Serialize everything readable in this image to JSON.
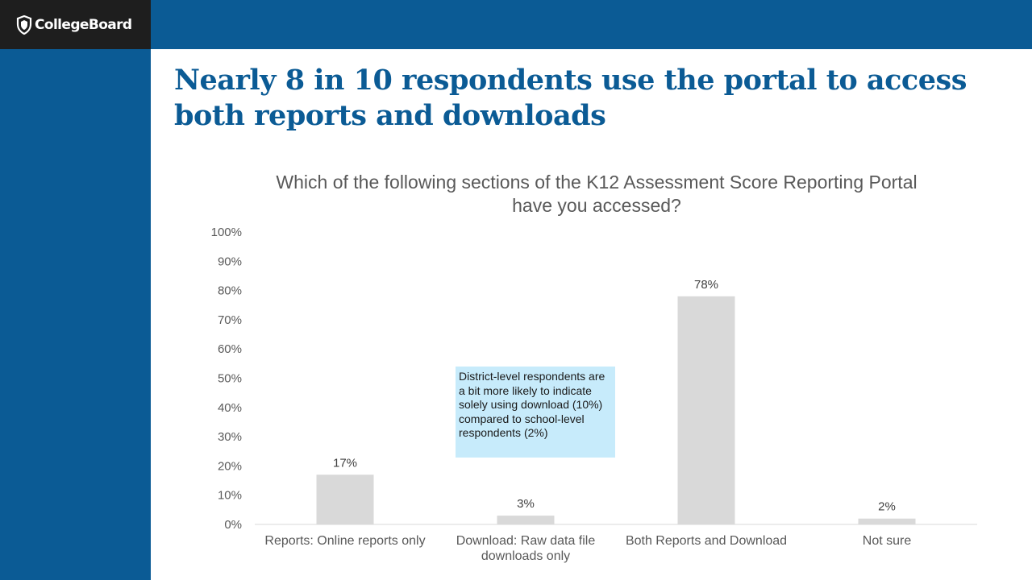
{
  "brand": {
    "name": "CollegeBoard",
    "color_primary": "#0b5b95",
    "color_logo_bg": "#1e1e1e"
  },
  "slide": {
    "title": "Nearly 8 in 10 respondents use the portal to access both reports and downloads"
  },
  "callout": {
    "text": "District-level respondents are a bit more likely to indicate solely using download (10%) compared to school-level respondents (2%)",
    "color": "#c7ebfb"
  },
  "chart_data": {
    "type": "bar",
    "title": "Which of the following sections of the K12 Assessment Score Reporting Portal have you accessed?",
    "categories": [
      "Reports: Online reports only",
      "Download: Raw data file downloads only",
      "Both Reports and Download",
      "Not sure"
    ],
    "category_lines": [
      [
        "Reports: Online reports only"
      ],
      [
        "Download: Raw data file",
        "downloads only"
      ],
      [
        "Both Reports and Download"
      ],
      [
        "Not sure"
      ]
    ],
    "values": [
      17,
      3,
      78,
      2
    ],
    "data_labels": [
      "17%",
      "3%",
      "78%",
      "2%"
    ],
    "ylim": [
      0,
      100
    ],
    "yticks": [
      0,
      10,
      20,
      30,
      40,
      50,
      60,
      70,
      80,
      90,
      100
    ],
    "ytick_labels": [
      "0%",
      "10%",
      "20%",
      "30%",
      "40%",
      "50%",
      "60%",
      "70%",
      "80%",
      "90%",
      "100%"
    ],
    "xlabel": "",
    "ylabel": "",
    "grid": false,
    "bar_color": "#d9d9d9"
  }
}
